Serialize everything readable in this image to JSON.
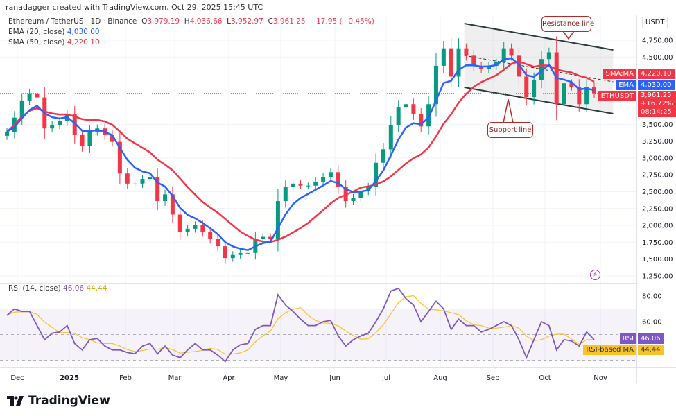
{
  "credit": "ranadagger created with TradingView.com, Oct 29, 2025 15:45 UTC",
  "legend": {
    "symbol": "Ethereum / TetherUS · 1D · Binance",
    "open_label": "O",
    "open": "3,979.19",
    "high_label": "H",
    "high": "4,036.66",
    "low_label": "L",
    "low": "3,952.97",
    "close_label": "C",
    "close": "3,961.25",
    "change": "−17.95 (−0.45%)",
    "ema_label": "EMA (20, close)",
    "ema_value": "4,030.00",
    "sma_label": "SMA (50, close)",
    "sma_value": "4,220.10"
  },
  "price_axis": {
    "currency": "USDT",
    "ticks": [
      "4,750.00",
      "4,500.00",
      "3,500.00",
      "3,250.00",
      "3,000.00",
      "2,750.00",
      "2,500.00",
      "2,250.00",
      "2,000.00",
      "1,750.00",
      "1,500.00",
      "1,250.00"
    ],
    "tags": {
      "sma_name": "SMA:MA",
      "sma_value": "4,220.10",
      "ema_name": "EMA",
      "ema_value": "4,030.00",
      "symbol_name": "ETHUSDT",
      "last_price": "3,961.25",
      "change_pct": "+16.72%",
      "countdown": "08:14:25"
    }
  },
  "rsi": {
    "label": "RSI (14, close)",
    "value": "46.06",
    "ma_value": "44.44",
    "ticks": [
      "80.00",
      "60.00"
    ],
    "tag_rsi": "RSI",
    "tag_ma": "RSI-based MA"
  },
  "time_axis": [
    "Dec",
    "2025",
    "Feb",
    "Mar",
    "Apr",
    "May",
    "Jun",
    "Jul",
    "Aug",
    "Sep",
    "Oct",
    "Nov"
  ],
  "annotations": {
    "resistance": "Resistance line",
    "support": "Support line"
  },
  "logo": "TradingView",
  "colors": {
    "up": "#089981",
    "down": "#f23645",
    "ema": "#2962ff",
    "sma": "#f23645",
    "rsi": "#7e57c2",
    "rsi_ma": "#f7c325"
  },
  "chart_data": {
    "type": "candlestick",
    "x_range": [
      "2024-11-24",
      "2025-10-29"
    ],
    "y_range": [
      1250,
      4750
    ],
    "closes": [
      3390,
      3600,
      3855,
      3960,
      3900,
      3440,
      3490,
      3545,
      3650,
      3340,
      3180,
      3390,
      3440,
      3340,
      3240,
      2770,
      2620,
      2620,
      2690,
      2720,
      2360,
      2460,
      2160,
      1900,
      1950,
      2000,
      1900,
      1800,
      1690,
      1515,
      1560,
      1590,
      1590,
      1800,
      1830,
      1800,
      2360,
      2570,
      2620,
      2590,
      2590,
      2650,
      2720,
      2790,
      2570,
      2360,
      2410,
      2510,
      2570,
      2930,
      3130,
      3490,
      3750,
      3800,
      3650,
      3470,
      3800,
      4370,
      4630,
      4210,
      4630,
      4520,
      4370,
      4320,
      4370,
      4420,
      4630,
      4520,
      4210,
      3905,
      4160,
      4470,
      4570,
      3800,
      4110,
      4060,
      3800,
      4060,
      3961
    ],
    "rsi_values": [
      65,
      70,
      68,
      68,
      57,
      46,
      51,
      52,
      57,
      43,
      38,
      46,
      47,
      41,
      38,
      38,
      36,
      35,
      41,
      43,
      35,
      41,
      34,
      32,
      38,
      43,
      38,
      38,
      34,
      29,
      38,
      42,
      43,
      54,
      57,
      57,
      81,
      73,
      68,
      62,
      57,
      57,
      60,
      61,
      49,
      41,
      46,
      49,
      51,
      60,
      70,
      84,
      86,
      78,
      73,
      60,
      68,
      76,
      70,
      54,
      62,
      57,
      57,
      52,
      54,
      57,
      60,
      57,
      46,
      32,
      46,
      60,
      57,
      38,
      46,
      45,
      41,
      52,
      46
    ],
    "rsi_levels": [
      70,
      50,
      30
    ],
    "channel": {
      "start": "2025-08-15",
      "end": "2025-11-09",
      "resistance": [
        4997,
        4606
      ],
      "midline": [
        4523,
        4132
      ],
      "support": [
        4050,
        3658
      ]
    }
  }
}
